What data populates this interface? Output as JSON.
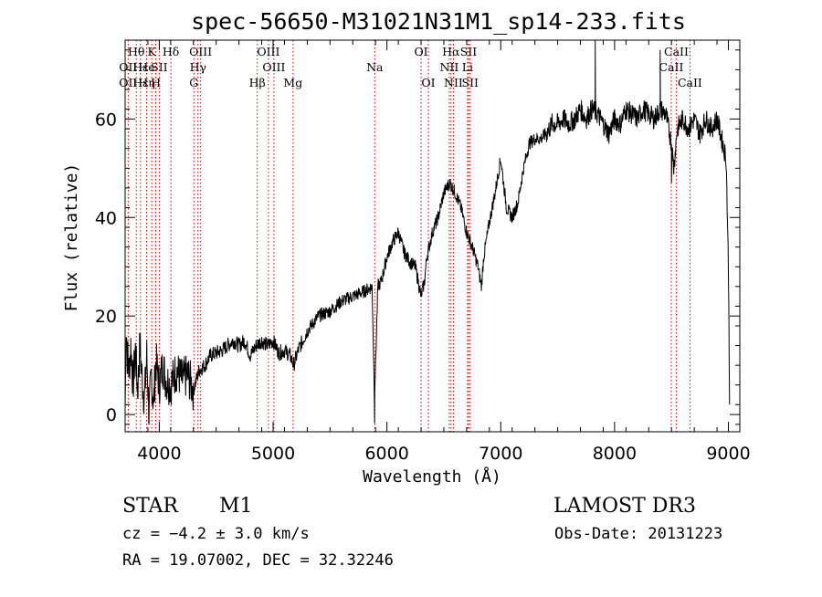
{
  "chart_data": {
    "type": "line",
    "title": "spec-56650-M31021N31M1_sp14-233.fits",
    "xlabel": "Wavelength (Å)",
    "ylabel": "Flux (relative)",
    "xlim": [
      3700,
      9100
    ],
    "ylim": [
      -3.5,
      76
    ],
    "x_ticks": [
      4000,
      5000,
      6000,
      7000,
      8000,
      9000
    ],
    "y_ticks": [
      0,
      20,
      40,
      60
    ],
    "line_color": "#000000",
    "marker_color": "#cc0000",
    "spectrum_anchors": [
      [
        3700,
        1
      ],
      [
        3710,
        18
      ],
      [
        3720,
        12
      ],
      [
        3735,
        9
      ],
      [
        3750,
        14
      ],
      [
        3770,
        6
      ],
      [
        3790,
        13
      ],
      [
        3810,
        5
      ],
      [
        3830,
        14
      ],
      [
        3850,
        7
      ],
      [
        3870,
        3
      ],
      [
        3890,
        12
      ],
      [
        3910,
        0
      ],
      [
        3930,
        8
      ],
      [
        3950,
        2
      ],
      [
        3970,
        11
      ],
      [
        4000,
        6
      ],
      [
        4030,
        10
      ],
      [
        4060,
        7
      ],
      [
        4100,
        6
      ],
      [
        4150,
        9
      ],
      [
        4200,
        7
      ],
      [
        4250,
        8
      ],
      [
        4300,
        5
      ],
      [
        4350,
        9
      ],
      [
        4400,
        10
      ],
      [
        4450,
        12
      ],
      [
        4500,
        12.5
      ],
      [
        4550,
        13
      ],
      [
        4600,
        14
      ],
      [
        4650,
        15
      ],
      [
        4700,
        14
      ],
      [
        4750,
        15
      ],
      [
        4800,
        12
      ],
      [
        4850,
        14
      ],
      [
        4900,
        15
      ],
      [
        4950,
        14
      ],
      [
        5000,
        15
      ],
      [
        5050,
        12.5
      ],
      [
        5100,
        13
      ],
      [
        5150,
        12
      ],
      [
        5180,
        10
      ],
      [
        5220,
        13
      ],
      [
        5300,
        17
      ],
      [
        5400,
        20
      ],
      [
        5500,
        21
      ],
      [
        5600,
        23
      ],
      [
        5700,
        24
      ],
      [
        5800,
        25
      ],
      [
        5870,
        26
      ],
      [
        5890,
        4
      ],
      [
        5900,
        10
      ],
      [
        5920,
        26
      ],
      [
        5950,
        27
      ],
      [
        6000,
        32
      ],
      [
        6050,
        35
      ],
      [
        6100,
        37
      ],
      [
        6150,
        33
      ],
      [
        6200,
        31
      ],
      [
        6250,
        30
      ],
      [
        6300,
        24
      ],
      [
        6330,
        27
      ],
      [
        6350,
        32
      ],
      [
        6400,
        37
      ],
      [
        6450,
        40
      ],
      [
        6500,
        45
      ],
      [
        6550,
        47
      ],
      [
        6600,
        45
      ],
      [
        6650,
        42
      ],
      [
        6700,
        37
      ],
      [
        6750,
        34
      ],
      [
        6800,
        30
      ],
      [
        6830,
        26
      ],
      [
        6850,
        32
      ],
      [
        6900,
        39
      ],
      [
        6950,
        45
      ],
      [
        7000,
        52
      ],
      [
        7050,
        42
      ],
      [
        7100,
        40
      ],
      [
        7150,
        43
      ],
      [
        7200,
        50
      ],
      [
        7250,
        55
      ],
      [
        7300,
        56
      ],
      [
        7350,
        56
      ],
      [
        7400,
        57
      ],
      [
        7450,
        59
      ],
      [
        7500,
        59
      ],
      [
        7550,
        60
      ],
      [
        7600,
        59
      ],
      [
        7650,
        60
      ],
      [
        7700,
        62
      ],
      [
        7750,
        60
      ],
      [
        7800,
        62
      ],
      [
        7850,
        61
      ],
      [
        7900,
        59
      ],
      [
        7950,
        57
      ],
      [
        8000,
        60
      ],
      [
        8050,
        59
      ],
      [
        8100,
        62
      ],
      [
        8150,
        61
      ],
      [
        8200,
        60
      ],
      [
        8250,
        62
      ],
      [
        8300,
        61
      ],
      [
        8350,
        60
      ],
      [
        8400,
        62
      ],
      [
        8450,
        61
      ],
      [
        8500,
        55
      ],
      [
        8520,
        50
      ],
      [
        8550,
        58
      ],
      [
        8600,
        60
      ],
      [
        8650,
        58
      ],
      [
        8700,
        60
      ],
      [
        8750,
        57
      ],
      [
        8800,
        60
      ],
      [
        8850,
        58
      ],
      [
        8900,
        60
      ],
      [
        8950,
        55
      ],
      [
        8980,
        52
      ],
      [
        9000,
        30
      ],
      [
        9010,
        2
      ]
    ],
    "spikes": [
      [
        3910,
        -0.5
      ],
      [
        5891,
        -1.8
      ],
      [
        7830,
        76
      ],
      [
        8400,
        74
      ],
      [
        8500,
        47
      ]
    ],
    "lines": [
      {
        "label": "Hθ",
        "wavelength": 3798,
        "row": 0
      },
      {
        "label": "OII",
        "wavelength": 3727,
        "row": 1
      },
      {
        "label": "OII",
        "wavelength": 3727,
        "row": 2
      },
      {
        "label": "Hε",
        "wavelength": 3835,
        "row": 1
      },
      {
        "label": "Hε",
        "wavelength": 3835,
        "row": 2
      },
      {
        "label": "He",
        "wavelength": 3889,
        "row": 1
      },
      {
        "label": "Hη",
        "wavelength": 3889,
        "row": 2
      },
      {
        "label": "K",
        "wavelength": 3934,
        "row": 0
      },
      {
        "label": "SII",
        "wavelength": 4000,
        "row": 1
      },
      {
        "label": "H",
        "wavelength": 3969,
        "row": 2
      },
      {
        "label": "Hδ",
        "wavelength": 4102,
        "row": 0
      },
      {
        "label": "OIII",
        "wavelength": 4363,
        "row": 0
      },
      {
        "label": "Hγ",
        "wavelength": 4340,
        "row": 1
      },
      {
        "label": "G",
        "wavelength": 4304,
        "row": 2
      },
      {
        "label": "Hβ",
        "wavelength": 4861,
        "row": 2
      },
      {
        "label": "OIII",
        "wavelength": 4959,
        "row": 0
      },
      {
        "label": "OIII",
        "wavelength": 5007,
        "row": 1
      },
      {
        "label": "Mg",
        "wavelength": 5175,
        "row": 2
      },
      {
        "label": "Na",
        "wavelength": 5893,
        "row": 1
      },
      {
        "label": "OI",
        "wavelength": 6300,
        "row": 0
      },
      {
        "label": "OI",
        "wavelength": 6364,
        "row": 2
      },
      {
        "label": "Hα",
        "wavelength": 6563,
        "row": 0
      },
      {
        "label": "NII",
        "wavelength": 6548,
        "row": 1
      },
      {
        "label": "NII",
        "wavelength": 6584,
        "row": 2
      },
      {
        "label": "SII",
        "wavelength": 6717,
        "row": 0
      },
      {
        "label": "Li",
        "wavelength": 6708,
        "row": 1
      },
      {
        "label": "SII",
        "wavelength": 6731,
        "row": 2
      },
      {
        "label": "CaII",
        "wavelength": 8542,
        "row": 0
      },
      {
        "label": "CaII",
        "wavelength": 8498,
        "row": 1
      },
      {
        "label": "CaII",
        "wavelength": 8662,
        "row": 2
      }
    ]
  },
  "info": {
    "class": "STAR",
    "subclass": "M1",
    "survey": "LAMOST DR3",
    "cz": "cz = −4.2 ± 3.0 km/s",
    "obs_date": "Obs-Date: 20131223",
    "coords": "RA =  19.07002, DEC =  32.32246"
  }
}
